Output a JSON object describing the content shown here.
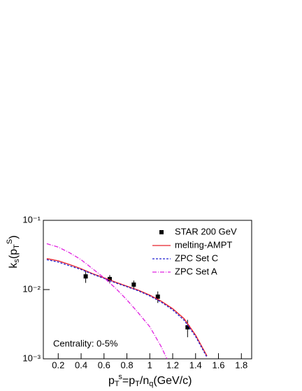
{
  "chart_data": {
    "type": "line",
    "ylabel": [
      [
        "k",
        ""
      ],
      [
        "s",
        "sub"
      ],
      [
        "(p",
        ""
      ],
      [
        "T",
        "sub"
      ],
      [
        "S",
        "sup"
      ],
      [
        ")",
        ""
      ]
    ],
    "xlabel": [
      [
        "p",
        ""
      ],
      [
        "T",
        "sub"
      ],
      [
        "s",
        "sup"
      ],
      [
        "=p",
        ""
      ],
      [
        "T",
        "sub"
      ],
      [
        "/n",
        ""
      ],
      [
        "q",
        "sub"
      ],
      [
        "(GeV/c)",
        ""
      ]
    ],
    "annotation": "Centrality: 0-5%",
    "xlim": [
      0.07,
      1.89
    ],
    "ylim": [
      0.001,
      0.1
    ],
    "log_y": true,
    "xticks": [
      0.2,
      0.4,
      0.6,
      0.8,
      1,
      1.2,
      1.4,
      1.6,
      1.8
    ],
    "yticks": [
      {
        "value": 0.001,
        "label": "10⁻³"
      },
      {
        "value": 0.01,
        "label": "10⁻²"
      },
      {
        "value": 0.1,
        "label": "10⁻¹"
      }
    ],
    "legend": "top-right",
    "series": [
      {
        "name": "STAR 200 GeV",
        "color": "#000000",
        "style": "markers",
        "x": [
          0.44,
          0.65,
          0.86,
          1.07,
          1.33
        ],
        "values": [
          0.0155,
          0.0142,
          0.0118,
          0.0079,
          0.00285
        ],
        "errors": [
          0.003,
          0.002,
          0.0017,
          0.0015,
          0.0008
        ]
      },
      {
        "name": "melting-AMPT",
        "color": "#e8202a",
        "style": "solid",
        "x": [
          0.1,
          0.2,
          0.3,
          0.4,
          0.5,
          0.6,
          0.7,
          0.8,
          0.9,
          1.0,
          1.1,
          1.2,
          1.3,
          1.4,
          1.5
        ],
        "values": [
          0.028,
          0.026,
          0.023,
          0.02,
          0.017,
          0.0148,
          0.0128,
          0.0112,
          0.0098,
          0.0083,
          0.0068,
          0.0053,
          0.0038,
          0.0022,
          0.0011
        ]
      },
      {
        "name": "ZPC Set C",
        "color": "#2020d0",
        "style": "dashed",
        "x": [
          0.1,
          0.2,
          0.3,
          0.4,
          0.5,
          0.6,
          0.7,
          0.8,
          0.9,
          1.0,
          1.1,
          1.2,
          1.3,
          1.4,
          1.5
        ],
        "values": [
          0.027,
          0.025,
          0.022,
          0.0195,
          0.0167,
          0.0145,
          0.0125,
          0.011,
          0.0096,
          0.0081,
          0.0066,
          0.0051,
          0.0036,
          0.0021,
          0.00105
        ]
      },
      {
        "name": "ZPC Set A",
        "color": "#e020e0",
        "style": "dashdot",
        "x": [
          0.1,
          0.2,
          0.3,
          0.4,
          0.5,
          0.6,
          0.7,
          0.8,
          0.9,
          1.0,
          1.1,
          1.15
        ],
        "values": [
          0.046,
          0.041,
          0.034,
          0.027,
          0.02,
          0.0148,
          0.0105,
          0.0071,
          0.0046,
          0.0029,
          0.0015,
          0.001
        ]
      }
    ]
  }
}
